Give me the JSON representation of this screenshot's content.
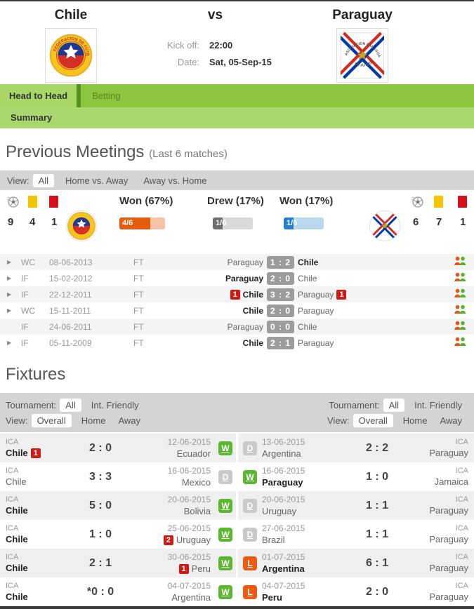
{
  "header": {
    "home_team": "Chile",
    "vs_label": "vs",
    "away_team": "Paraguay",
    "kickoff_label": "Kick off:",
    "kickoff_value": "22:00",
    "date_label": "Date:",
    "date_value": "Sat, 05-Sep-15"
  },
  "tabs": {
    "head_to_head": "Head to Head",
    "betting": "Betting",
    "summary": "Summary"
  },
  "previous_meetings": {
    "title": "Previous Meetings",
    "subtitle": "(Last 6 matches)",
    "view_label": "View:",
    "views": [
      "All",
      "Home vs. Away",
      "Away vs. Home"
    ],
    "chile_stats": {
      "goals": "9",
      "yellow_cards": "4",
      "red_cards": "1"
    },
    "paraguay_stats": {
      "goals": "6",
      "yellow_cards": "7",
      "red_cards": "1"
    },
    "summary_bars": [
      {
        "label": "Won (67%)",
        "value": "4/6",
        "percent": 67,
        "fill_color": "#e55c0a",
        "track_color": "#f5c3a6"
      },
      {
        "label": "Drew (17%)",
        "value": "1/6",
        "percent": 17,
        "fill_color": "#6d6d6d",
        "track_color": "#d9d9d9"
      },
      {
        "label": "Won (17%)",
        "value": "1/6",
        "percent": 17,
        "fill_color": "#2080cf",
        "track_color": "#b9d8ee"
      }
    ],
    "matches": [
      {
        "competition": "WC",
        "date": "08-06-2013",
        "status": "FT",
        "home_team": "Paraguay",
        "score": "1 : 2",
        "away_team": "Chile"
      },
      {
        "competition": "IF",
        "date": "15-02-2012",
        "status": "FT",
        "home_team": "Paraguay",
        "score": "2 : 0",
        "away_team": "Chile"
      },
      {
        "competition": "IF",
        "date": "22-12-2011",
        "status": "FT",
        "home_red_cards": "1",
        "home_team": "Chile",
        "score": "3 : 2",
        "away_team": "Paraguay",
        "away_red_cards": "1"
      },
      {
        "competition": "WC",
        "date": "15-11-2011",
        "status": "FT",
        "home_team": "Chile",
        "score": "2 : 0",
        "away_team": "Paraguay"
      },
      {
        "competition": "IF",
        "date": "24-06-2011",
        "status": "FT",
        "home_team": "Paraguay",
        "score": "0 : 0",
        "away_team": "Chile"
      },
      {
        "competition": "IF",
        "date": "05-11-2009",
        "status": "FT",
        "home_team": "Chile",
        "score": "2 : 1",
        "away_team": "Paraguay"
      }
    ]
  },
  "fixtures": {
    "title": "Fixtures",
    "tournament_label": "Tournament:",
    "tournament_options": [
      "All",
      "Int. Friendly"
    ],
    "view_label": "View:",
    "view_options": [
      "Overall",
      "Home",
      "Away"
    ],
    "chile": [
      {
        "competition": "ICA",
        "team": "Chile",
        "team_red_cards": "1",
        "score": "2 : 0",
        "date": "12-06-2015",
        "opponent": "Ecuador",
        "result": "W"
      },
      {
        "competition": "ICA",
        "team": "Chile",
        "score": "3 : 3",
        "date": "16-06-2015",
        "opponent": "Mexico",
        "result": "D"
      },
      {
        "competition": "ICA",
        "team": "Chile",
        "score": "5 : 0",
        "date": "20-06-2015",
        "opponent": "Bolivia",
        "result": "W"
      },
      {
        "competition": "ICA",
        "team": "Chile",
        "score": "1 : 0",
        "date": "25-06-2015",
        "opponent_red_cards": "2",
        "opponent": "Uruguay",
        "result": "W"
      },
      {
        "competition": "ICA",
        "team": "Chile",
        "score": "2 : 1",
        "date": "30-06-2015",
        "opponent_red_cards": "1",
        "opponent": "Peru",
        "result": "W"
      },
      {
        "competition": "ICA",
        "team": "Chile",
        "score": "*0 : 0",
        "date": "04-07-2015",
        "opponent": "Argentina",
        "result": "W"
      }
    ],
    "paraguay": [
      {
        "result": "D",
        "date": "13-06-2015",
        "team": "Argentina",
        "score": "2 : 2",
        "competition": "ICA",
        "opponent": "Paraguay"
      },
      {
        "result": "W",
        "date": "16-06-2015",
        "team": "Paraguay",
        "score": "1 : 0",
        "competition": "ICA",
        "opponent": "Jamaica"
      },
      {
        "result": "D",
        "date": "20-06-2015",
        "team": "Uruguay",
        "score": "1 : 1",
        "competition": "ICA",
        "opponent": "Paraguay"
      },
      {
        "result": "D",
        "date": "27-06-2015",
        "team": "Brazil",
        "score": "1 : 1",
        "competition": "ICA",
        "opponent": "Paraguay"
      },
      {
        "result": "L",
        "date": "01-07-2015",
        "team": "Argentina",
        "score": "6 : 1",
        "competition": "ICA",
        "opponent": "Paraguay"
      },
      {
        "result": "L",
        "date": "04-07-2015",
        "team": "Peru",
        "score": "2 : 0",
        "competition": "ICA",
        "opponent": "Paraguay"
      }
    ]
  },
  "colors": {
    "tab_green": "#8cc63e",
    "tab_active_green": "#a7d765",
    "summary_green": "#a9d96e",
    "filter_gray": "#d4d4d4",
    "win_badge": "#5bb72f",
    "draw_badge": "#c9c9c9",
    "loss_badge": "#ee5a10",
    "score_pill": "#9c9c9c",
    "red_card": "#d8101c",
    "yellow_card": "#f5c400"
  }
}
